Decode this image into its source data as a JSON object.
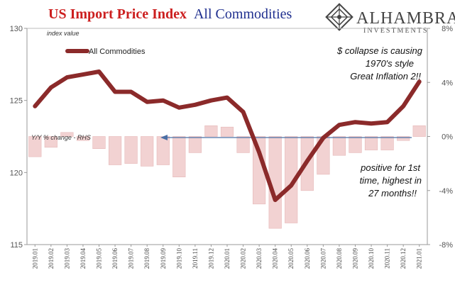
{
  "chart_data": {
    "type": "line",
    "title_part1": "US Import Price Index",
    "title_part2": "All Commodities",
    "ylabel_left": "index value",
    "ylabel_right_note": "Y/Y % change - RHS",
    "ylim_left": [
      115,
      130
    ],
    "yticks_left": [
      115,
      120,
      125,
      130
    ],
    "ylim_right": [
      -8,
      8
    ],
    "yticks_right": [
      {
        "value": 8,
        "label": "8%"
      },
      {
        "value": 4,
        "label": "4%"
      },
      {
        "value": 0,
        "label": "0%"
      },
      {
        "value": -4,
        "label": "-4%"
      },
      {
        "value": -8,
        "label": "-8%"
      }
    ],
    "categories": [
      "2019.01",
      "2019.02",
      "2019.03",
      "2019.04",
      "2019.05",
      "2019.06",
      "2019.07",
      "2019.08",
      "2019.09",
      "2019.10",
      "2019.11",
      "2019.12",
      "2020.01",
      "2020.02",
      "2020.03",
      "2020.04",
      "2020.05",
      "2020.06",
      "2020.07",
      "2020.08",
      "2020.09",
      "2020.10",
      "2020.11",
      "2020.12",
      "2021.01"
    ],
    "series": [
      {
        "name": "All Commodities",
        "type": "line",
        "axis": "left",
        "color": "#8b2a2a",
        "values": [
          124.6,
          125.9,
          126.6,
          126.8,
          127.0,
          125.6,
          125.6,
          124.9,
          125.0,
          124.5,
          124.7,
          125.0,
          125.2,
          124.2,
          121.4,
          118.1,
          119.1,
          120.8,
          122.4,
          123.3,
          123.5,
          123.4,
          123.5,
          124.6,
          126.3
        ]
      },
      {
        "name": "Y/Y % change - RHS",
        "type": "bar",
        "axis": "right",
        "color": "#f2d2d2",
        "values": [
          -1.5,
          -0.8,
          0.3,
          -0.3,
          -0.9,
          -2.1,
          -2.0,
          -2.2,
          -2.1,
          -3.0,
          -1.2,
          0.8,
          0.7,
          -1.2,
          -5.0,
          -6.8,
          -6.4,
          -4.0,
          -2.8,
          -1.4,
          -1.2,
          -1.0,
          -1.0,
          -0.3,
          0.8
        ]
      }
    ],
    "legend": {
      "label": "All Commodities",
      "placement": "top-left"
    },
    "annotations": {
      "top_right": [
        "$ collapse is causing",
        "1970's style",
        "Great Inflation 2!!"
      ],
      "bottom_right": [
        "positive for 1st",
        "time, highest in",
        "27 months!!"
      ]
    }
  },
  "logo": {
    "name": "ALHAMBRA",
    "tagline": "INVESTMENTS"
  },
  "colors": {
    "title_red": "#cc1f1f",
    "title_blue": "#1f2f8f",
    "line": "#8b2a2a",
    "bar": "#f2d2d2",
    "bar_stroke": "#e6b8b8",
    "arrow": "#4a6fa5"
  }
}
